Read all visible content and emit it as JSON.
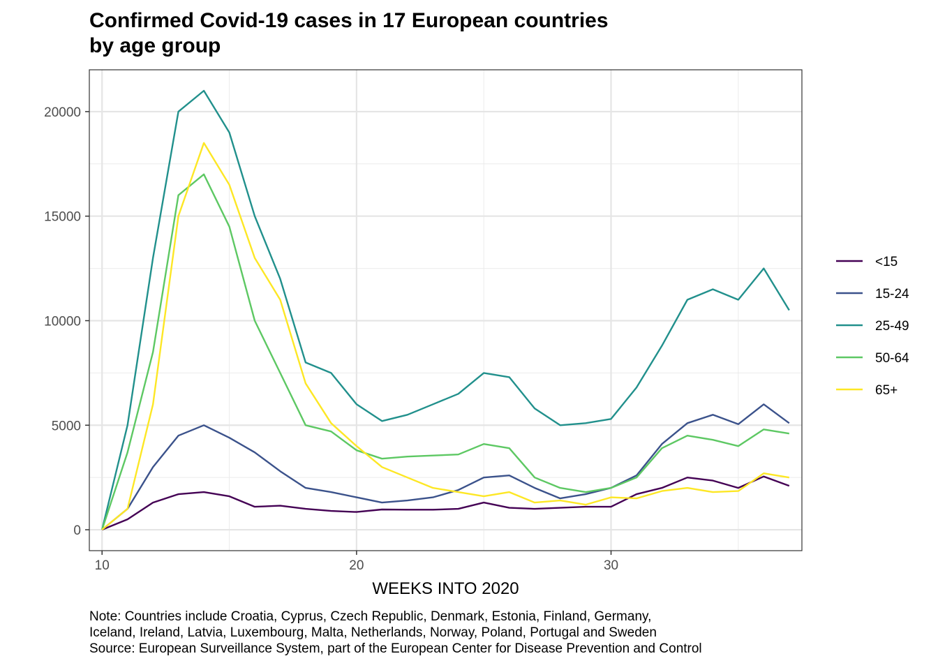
{
  "chart_data": {
    "type": "line",
    "title": "Confirmed Covid-19 cases in 17 European countries",
    "subtitle_line2": "by age group",
    "xlabel": "WEEKS INTO 2020",
    "ylabel": "",
    "xlim": [
      9.5,
      37.5
    ],
    "ylim": [
      -1000,
      22000
    ],
    "x_ticks": [
      10,
      20,
      30
    ],
    "y_ticks": [
      0,
      5000,
      10000,
      15000,
      20000
    ],
    "x_minor_ticks": [
      15,
      25,
      35
    ],
    "y_minor_ticks": [
      2500,
      7500,
      12500,
      17500
    ],
    "grid": true,
    "legend_position": "right",
    "x": [
      10,
      11,
      12,
      13,
      14,
      15,
      16,
      17,
      18,
      19,
      20,
      21,
      22,
      23,
      24,
      25,
      26,
      27,
      28,
      29,
      30,
      31,
      32,
      33,
      34,
      35,
      36,
      37
    ],
    "series": [
      {
        "name": "<15",
        "color": "#440154",
        "values": [
          0,
          500,
          1300,
          1700,
          1800,
          1600,
          1100,
          1150,
          1000,
          900,
          850,
          970,
          960,
          960,
          1000,
          1300,
          1050,
          1000,
          1050,
          1100,
          1100,
          1700,
          2000,
          2500,
          2350,
          2000,
          2550,
          2100
        ]
      },
      {
        "name": "15-24",
        "color": "#3B528B",
        "values": [
          0,
          1000,
          3000,
          4500,
          5000,
          4400,
          3700,
          2800,
          2000,
          1800,
          1550,
          1300,
          1400,
          1550,
          1900,
          2500,
          2600,
          2000,
          1500,
          1700,
          2000,
          2600,
          4100,
          5100,
          5500,
          5050,
          6000,
          5100
        ]
      },
      {
        "name": "25-49",
        "color": "#21908C",
        "values": [
          0,
          5000,
          13000,
          20000,
          21000,
          19000,
          15000,
          12000,
          8000,
          7500,
          6000,
          5200,
          5500,
          6000,
          6500,
          7500,
          7300,
          5800,
          5000,
          5100,
          5300,
          6800,
          8800,
          11000,
          11500,
          11000,
          12500,
          10500
        ]
      },
      {
        "name": "50-64",
        "color": "#5DC863",
        "values": [
          0,
          3700,
          8500,
          16000,
          17000,
          14500,
          10000,
          7500,
          5000,
          4700,
          3800,
          3400,
          3500,
          3550,
          3600,
          4100,
          3900,
          2500,
          2000,
          1800,
          2000,
          2500,
          3900,
          4500,
          4300,
          4000,
          4800,
          4600
        ]
      },
      {
        "name": "65+",
        "color": "#FDE725",
        "values": [
          0,
          1000,
          6000,
          15000,
          18500,
          16500,
          13000,
          11000,
          7000,
          5100,
          4000,
          3000,
          2500,
          2000,
          1800,
          1600,
          1800,
          1300,
          1400,
          1200,
          1550,
          1500,
          1850,
          2000,
          1800,
          1850,
          2700,
          2500
        ]
      }
    ]
  },
  "caption": {
    "line1": "Note: Countries include Croatia, Cyprus, Czech Republic, Denmark, Estonia, Finland, Germany,",
    "line2": "Iceland, Ireland, Latvia, Luxembourg, Malta, Netherlands, Norway, Poland, Portugal and Sweden",
    "line3": "Source: European Surveillance System, part of the European Center for Disease Prevention and Control"
  }
}
